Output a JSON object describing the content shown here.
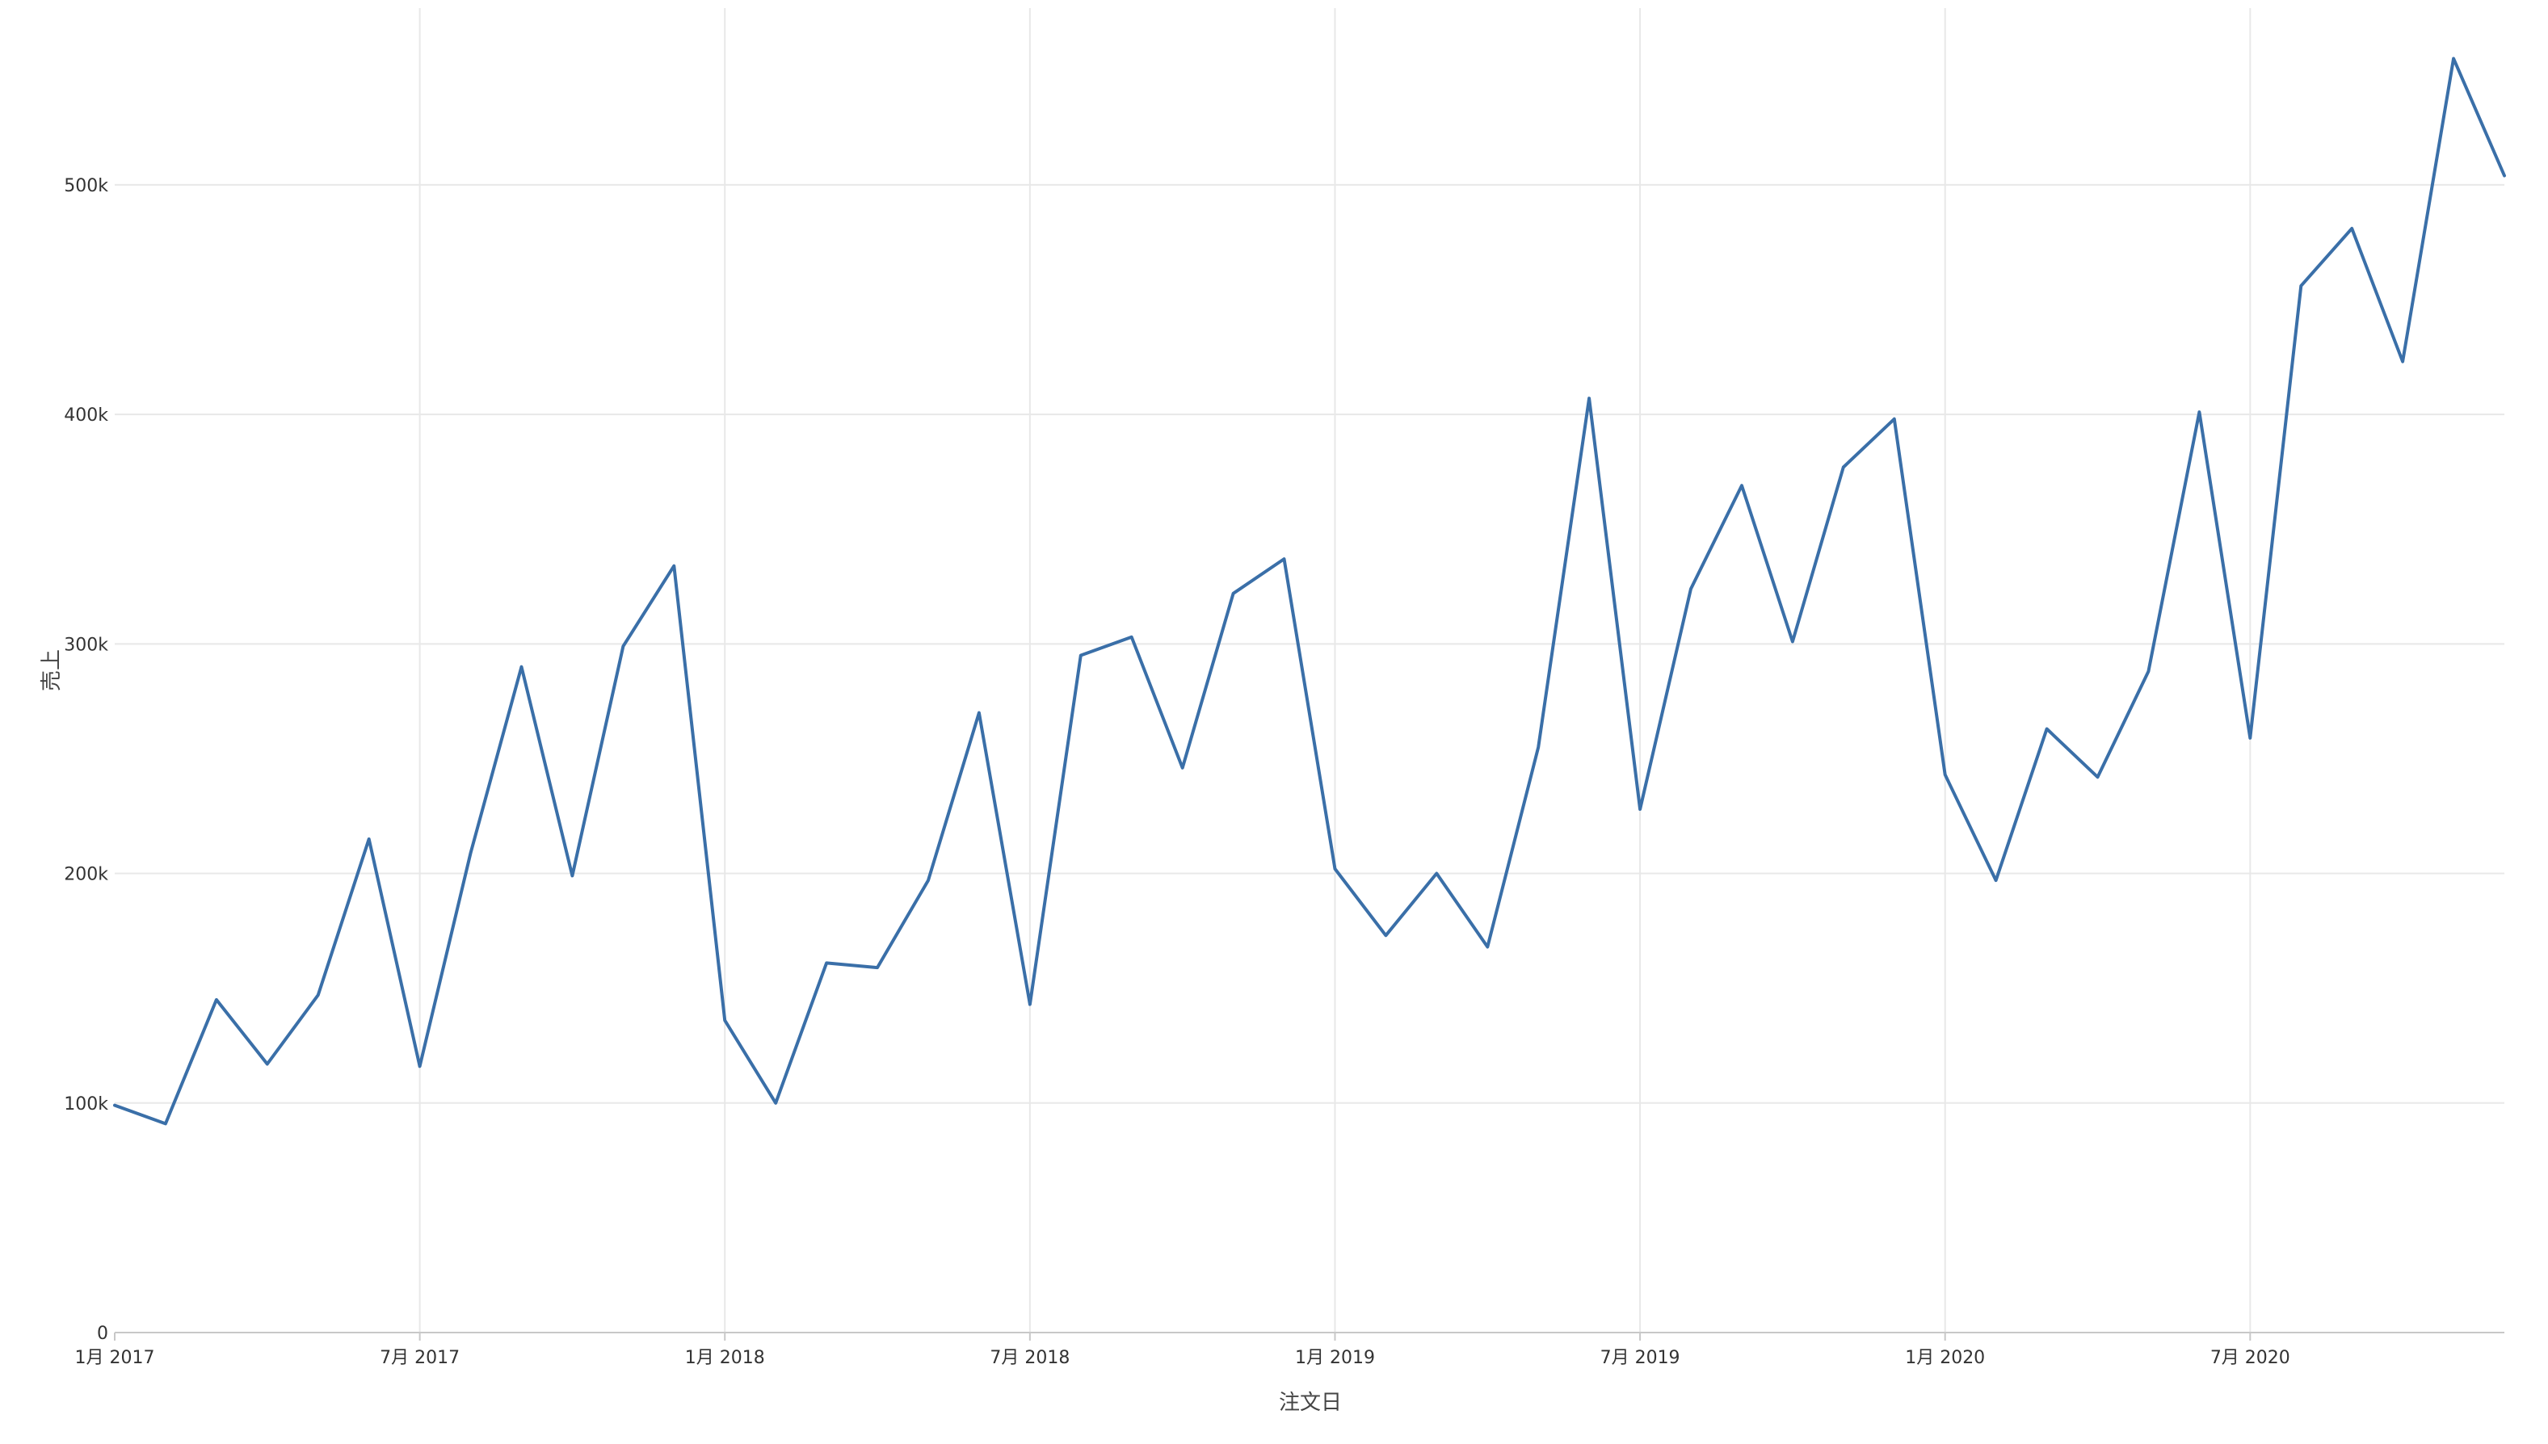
{
  "chart_data": {
    "type": "line",
    "xlabel": "注文日",
    "ylabel": "売上",
    "grid": true,
    "colors": {
      "series": "#3a6fa8"
    },
    "x_ticks": [
      "1月 2017",
      "7月 2017",
      "1月 2018",
      "7月 2018",
      "1月 2019",
      "7月 2019",
      "1月 2020",
      "7月 2020"
    ],
    "x_range": [
      "2017-01",
      "2020-12"
    ],
    "y_ticks": [
      {
        "value": 0,
        "label": "0"
      },
      {
        "value": 100000,
        "label": "100k"
      },
      {
        "value": 200000,
        "label": "200k"
      },
      {
        "value": 300000,
        "label": "300k"
      },
      {
        "value": 400000,
        "label": "400k"
      },
      {
        "value": 500000,
        "label": "500k"
      }
    ],
    "ylim": [
      0,
      577000
    ],
    "x": [
      "2017-01",
      "2017-02",
      "2017-03",
      "2017-04",
      "2017-05",
      "2017-06",
      "2017-07",
      "2017-08",
      "2017-09",
      "2017-10",
      "2017-11",
      "2017-12",
      "2018-01",
      "2018-02",
      "2018-03",
      "2018-04",
      "2018-05",
      "2018-06",
      "2018-07",
      "2018-08",
      "2018-09",
      "2018-10",
      "2018-11",
      "2018-12",
      "2019-01",
      "2019-02",
      "2019-03",
      "2019-04",
      "2019-05",
      "2019-06",
      "2019-07",
      "2019-08",
      "2019-09",
      "2019-10",
      "2019-11",
      "2019-12",
      "2020-01",
      "2020-02",
      "2020-03",
      "2020-04",
      "2020-05",
      "2020-06",
      "2020-07",
      "2020-08",
      "2020-09",
      "2020-10",
      "2020-11",
      "2020-12"
    ],
    "series": [
      {
        "values": [
          99000,
          91000,
          145000,
          117000,
          147000,
          215000,
          116000,
          209000,
          290000,
          199000,
          299000,
          334000,
          136000,
          100000,
          161000,
          159000,
          197000,
          270000,
          143000,
          295000,
          303000,
          246000,
          322000,
          337000,
          202000,
          173000,
          200000,
          168000,
          255000,
          407000,
          228000,
          324000,
          369000,
          301000,
          377000,
          398000,
          243000,
          197000,
          263000,
          242000,
          288000,
          401000,
          259000,
          456000,
          481000,
          423000,
          555000,
          504000
        ]
      }
    ]
  }
}
